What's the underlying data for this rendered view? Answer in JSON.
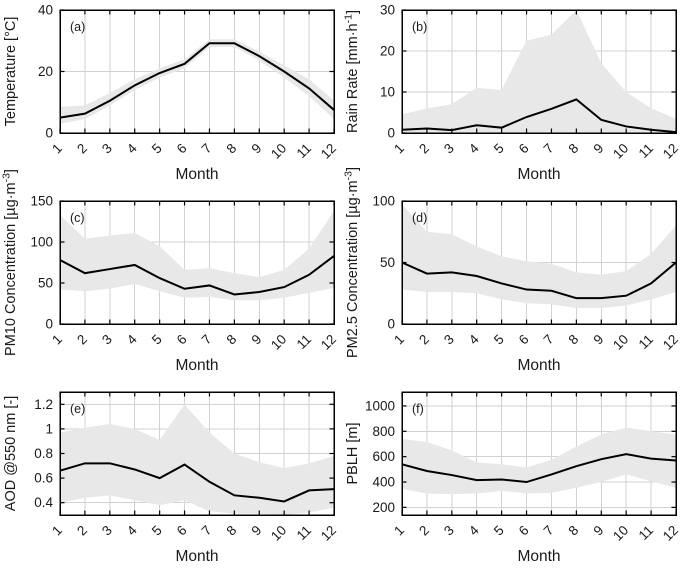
{
  "colors": {
    "line": "#000000",
    "band": "#e8e8e8",
    "grid": "#d2d2d2",
    "axis": "#000000",
    "text": "#1a1a1a",
    "background": "#ffffff"
  },
  "chart_data": [
    {
      "id": "a",
      "panel_label": "(a)",
      "type": "line",
      "xlabel": "Month",
      "ylabel": "Temperature [°C]",
      "ylabel_segments": [
        {
          "t": "Temperature [°C]"
        }
      ],
      "x": [
        1,
        2,
        3,
        4,
        5,
        6,
        7,
        8,
        9,
        10,
        11,
        12
      ],
      "xtick_labels": [
        "1",
        "2",
        "3",
        "4",
        "5",
        "6",
        "7",
        "8",
        "9",
        "10",
        "11",
        "12"
      ],
      "xlim": [
        1,
        12
      ],
      "ylim": [
        0,
        40
      ],
      "yticks": [
        0,
        20,
        40
      ],
      "ytick_labels": [
        "0",
        "20",
        "40"
      ],
      "grid": true,
      "legend": null,
      "series": [
        {
          "name": "monthly-mean",
          "values": [
            5,
            6.3,
            10.5,
            15.5,
            19.5,
            22.5,
            29.2,
            29.2,
            25,
            20,
            14.5,
            7.5
          ]
        },
        {
          "name": "band-upper",
          "values": [
            8.5,
            9,
            13,
            17.5,
            21,
            24,
            30.5,
            30.5,
            26.5,
            22,
            17.5,
            10.5
          ]
        },
        {
          "name": "band-lower",
          "values": [
            3,
            4.5,
            9,
            14,
            18,
            21,
            28,
            28,
            23.5,
            18,
            12,
            4.5
          ]
        }
      ]
    },
    {
      "id": "b",
      "panel_label": "(b)",
      "type": "line",
      "xlabel": "Month",
      "ylabel": "Rain Rate [mm·h⁻¹]",
      "ylabel_segments": [
        {
          "t": "Rain Rate [mm·h"
        },
        {
          "t": "-1",
          "sup": true
        },
        {
          "t": "]"
        }
      ],
      "x": [
        1,
        2,
        3,
        4,
        5,
        6,
        7,
        8,
        9,
        10,
        11,
        12
      ],
      "xtick_labels": [
        "1",
        "2",
        "3",
        "4",
        "5",
        "6",
        "7",
        "8",
        "9",
        "10",
        "11",
        "12"
      ],
      "xlim": [
        1,
        12
      ],
      "ylim": [
        0,
        30
      ],
      "yticks": [
        0,
        10,
        20,
        30
      ],
      "ytick_labels": [
        "0",
        "10",
        "20",
        "30"
      ],
      "grid": true,
      "legend": null,
      "series": [
        {
          "name": "monthly-mean",
          "values": [
            0.8,
            1.1,
            0.7,
            1.9,
            1.3,
            3.9,
            5.9,
            8.2,
            3.2,
            1.6,
            0.8,
            0.2
          ]
        },
        {
          "name": "band-upper",
          "values": [
            4.5,
            6,
            7,
            11,
            10.5,
            22.5,
            24,
            30,
            17,
            10,
            6,
            3.5
          ]
        },
        {
          "name": "band-lower",
          "values": [
            0,
            0,
            0,
            0,
            0,
            0,
            0,
            0,
            0,
            0,
            0,
            0
          ]
        }
      ]
    },
    {
      "id": "c",
      "panel_label": "(c)",
      "type": "line",
      "xlabel": "Month",
      "ylabel": "PM10 Concentration [µg·m⁻³]",
      "ylabel_segments": [
        {
          "t": "PM10 Concentration [µg·m"
        },
        {
          "t": "-3",
          "sup": true
        },
        {
          "t": "]"
        }
      ],
      "x": [
        1,
        2,
        3,
        4,
        5,
        6,
        7,
        8,
        9,
        10,
        11,
        12
      ],
      "xtick_labels": [
        "1",
        "2",
        "3",
        "4",
        "5",
        "6",
        "7",
        "8",
        "9",
        "10",
        "11",
        "12"
      ],
      "xlim": [
        1,
        12
      ],
      "ylim": [
        0,
        150
      ],
      "yticks": [
        0,
        50,
        100,
        150
      ],
      "ytick_labels": [
        "0",
        "50",
        "100",
        "150"
      ],
      "grid": true,
      "legend": null,
      "series": [
        {
          "name": "monthly-mean",
          "values": [
            78,
            62,
            67,
            72,
            56,
            43,
            47,
            36,
            39,
            45,
            60,
            83
          ]
        },
        {
          "name": "band-upper",
          "values": [
            133,
            104,
            108,
            111,
            95,
            66,
            68,
            62,
            57,
            66,
            92,
            138
          ]
        },
        {
          "name": "band-lower",
          "values": [
            42,
            40,
            43,
            49,
            40,
            32,
            33,
            29,
            29,
            32,
            38,
            44
          ]
        }
      ]
    },
    {
      "id": "d",
      "panel_label": "(d)",
      "type": "line",
      "xlabel": "Month",
      "ylabel": "PM2.5 Concentration [µg·m⁻³]",
      "ylabel_segments": [
        {
          "t": "PM2.5 Concentration [µg·m"
        },
        {
          "t": "-3",
          "sup": true
        },
        {
          "t": "]"
        }
      ],
      "x": [
        1,
        2,
        3,
        4,
        5,
        6,
        7,
        8,
        9,
        10,
        11,
        12
      ],
      "xtick_labels": [
        "1",
        "2",
        "3",
        "4",
        "5",
        "6",
        "7",
        "8",
        "9",
        "10",
        "11",
        "12"
      ],
      "xlim": [
        1,
        12
      ],
      "ylim": [
        0,
        100
      ],
      "yticks": [
        0,
        50,
        100
      ],
      "ytick_labels": [
        "0",
        "50",
        "100"
      ],
      "grid": true,
      "legend": null,
      "series": [
        {
          "name": "monthly-mean",
          "values": [
            50,
            41,
            42,
            39,
            33,
            28,
            27,
            21,
            21,
            23,
            33,
            50
          ]
        },
        {
          "name": "band-upper",
          "values": [
            97,
            75,
            73,
            63,
            55,
            51,
            49,
            42,
            40,
            43,
            57,
            80
          ]
        },
        {
          "name": "band-lower",
          "values": [
            28,
            26,
            26,
            25,
            20,
            17,
            16,
            13,
            13,
            15,
            20,
            26
          ]
        }
      ]
    },
    {
      "id": "e",
      "panel_label": "(e)",
      "type": "line",
      "xlabel": "Month",
      "ylabel": "AOD @550 nm [-]",
      "ylabel_segments": [
        {
          "t": "AOD @550 nm [-]"
        }
      ],
      "x": [
        1,
        2,
        3,
        4,
        5,
        6,
        7,
        8,
        9,
        10,
        11,
        12
      ],
      "xtick_labels": [
        "1",
        "2",
        "3",
        "4",
        "5",
        "6",
        "7",
        "8",
        "9",
        "10",
        "11",
        "12"
      ],
      "xlim": [
        1,
        12
      ],
      "ylim": [
        0.3,
        1.3
      ],
      "yticks": [
        0.4,
        0.6,
        0.8,
        1,
        1.2
      ],
      "ytick_labels": [
        "0.4",
        "0.6",
        "0.8",
        "1",
        "1.2"
      ],
      "grid": true,
      "legend": null,
      "series": [
        {
          "name": "monthly-mean",
          "values": [
            0.66,
            0.72,
            0.72,
            0.67,
            0.6,
            0.71,
            0.57,
            0.46,
            0.44,
            0.41,
            0.5,
            0.51
          ]
        },
        {
          "name": "band-upper",
          "values": [
            0.97,
            1.01,
            1.04,
            1.0,
            0.91,
            1.2,
            0.97,
            0.8,
            0.73,
            0.68,
            0.72,
            0.78
          ]
        },
        {
          "name": "band-lower",
          "values": [
            0.4,
            0.44,
            0.46,
            0.42,
            0.38,
            0.42,
            0.33,
            0.31,
            0.31,
            0.3,
            0.32,
            0.36
          ]
        }
      ]
    },
    {
      "id": "f",
      "panel_label": "(f)",
      "type": "line",
      "xlabel": "Month",
      "ylabel": "PBLH [m]",
      "ylabel_segments": [
        {
          "t": "PBLH [m]"
        }
      ],
      "x": [
        1,
        2,
        3,
        4,
        5,
        6,
        7,
        8,
        9,
        10,
        11,
        12
      ],
      "xtick_labels": [
        "1",
        "2",
        "3",
        "4",
        "5",
        "6",
        "7",
        "8",
        "9",
        "10",
        "11",
        "12"
      ],
      "xlim": [
        1,
        12
      ],
      "ylim": [
        140,
        1110
      ],
      "yticks": [
        200,
        400,
        600,
        800,
        1000
      ],
      "ytick_labels": [
        "200",
        "400",
        "600",
        "800",
        "1000"
      ],
      "grid": true,
      "legend": null,
      "series": [
        {
          "name": "monthly-mean",
          "values": [
            540,
            487,
            455,
            415,
            420,
            400,
            460,
            525,
            580,
            620,
            585,
            570
          ]
        },
        {
          "name": "band-upper",
          "values": [
            740,
            715,
            650,
            555,
            540,
            515,
            575,
            680,
            775,
            830,
            800,
            775
          ]
        },
        {
          "name": "band-lower",
          "values": [
            345,
            310,
            305,
            310,
            330,
            310,
            315,
            355,
            400,
            460,
            405,
            355
          ]
        }
      ]
    }
  ]
}
